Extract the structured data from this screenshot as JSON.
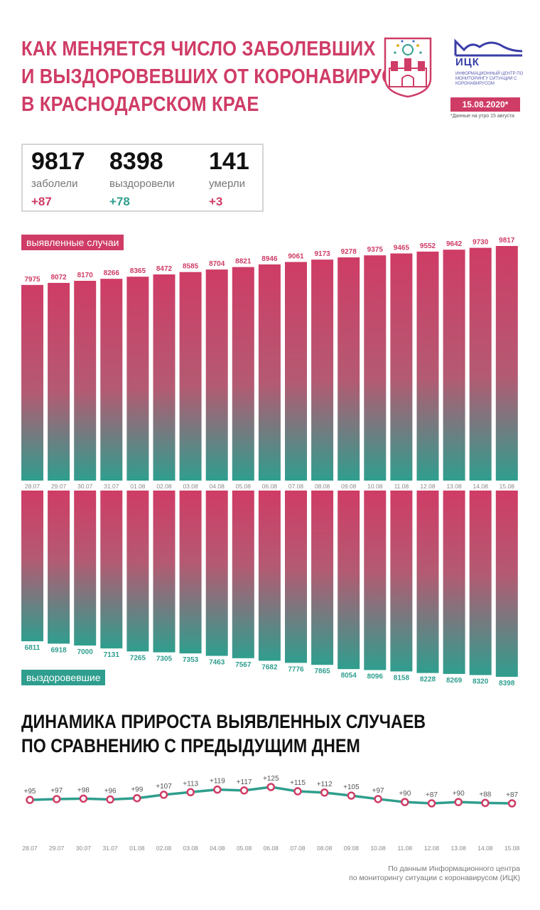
{
  "header": {
    "title_lines": [
      "КАК МЕНЯЕТСЯ ЧИСЛО ЗАБОЛЕВШИХ",
      "И ВЫЗДОРОВЕВШИХ ОТ КОРОНАВИРУСА",
      "В КРАСНОДАРСКОМ КРАЕ"
    ],
    "ick_name": "ИЦК",
    "ick_subtitle": "ИНФОРМАЦИОННЫЙ ЦЕНТР ПО МОНИТОРИНГУ СИТУАЦИИ С КОРОНАВИРУСОМ",
    "date": "15.08.2020*",
    "date_note": "*Данные на утро 15 августа"
  },
  "stats": [
    {
      "value": "9817",
      "label": "заболели",
      "delta": "+87",
      "color": "#cf3c66"
    },
    {
      "value": "8398",
      "label": "выздоровели",
      "delta": "+78",
      "color": "#2f9e8e"
    },
    {
      "value": "141",
      "label": "умерли",
      "delta": "+3",
      "color": "#cf3c66"
    }
  ],
  "colors": {
    "red": "#cf3c66",
    "teal": "#2f9e8e"
  },
  "chart_data": [
    {
      "type": "bar",
      "tag": "выявленные случаи",
      "categories": [
        "28.07",
        "29.07",
        "30.07",
        "31.07",
        "01.08",
        "02.08",
        "03.08",
        "04.08",
        "05.08",
        "06.08",
        "07.08",
        "08.08",
        "09.08",
        "10.08",
        "11.08",
        "12.08",
        "13.08",
        "14.08",
        "15.08"
      ],
      "values": [
        7975,
        8072,
        8170,
        8266,
        8365,
        8472,
        8585,
        8704,
        8821,
        8946,
        9061,
        9173,
        9278,
        9375,
        9465,
        9552,
        9642,
        9730,
        9817
      ]
    },
    {
      "type": "bar",
      "tag": "выздоровевшие",
      "categories": [
        "28.07",
        "29.07",
        "30.07",
        "31.07",
        "01.08",
        "02.08",
        "03.08",
        "04.08",
        "05.08",
        "06.08",
        "07.08",
        "08.08",
        "09.08",
        "10.08",
        "11.08",
        "12.08",
        "13.08",
        "14.08",
        "15.08"
      ],
      "values": [
        6811,
        6918,
        7000,
        7131,
        7265,
        7305,
        7353,
        7463,
        7567,
        7682,
        7776,
        7865,
        8054,
        8096,
        8158,
        8228,
        8269,
        8320,
        8398
      ]
    },
    {
      "type": "line",
      "title_lines": [
        "ДИНАМИКА ПРИРОСТА ВЫЯВЛЕННЫХ СЛУЧАЕВ",
        "ПО СРАВНЕНИЮ С ПРЕДЫДУЩИМ ДНЕМ"
      ],
      "categories": [
        "28.07",
        "29.07",
        "30.07",
        "31.07",
        "01.08",
        "02.08",
        "03.08",
        "04.08",
        "05.08",
        "06.08",
        "07.08",
        "08.08",
        "09.08",
        "10.08",
        "11.08",
        "12.08",
        "13.08",
        "14.08",
        "15.08"
      ],
      "values": [
        95,
        97,
        98,
        96,
        99,
        107,
        113,
        119,
        117,
        125,
        115,
        112,
        105,
        97,
        90,
        87,
        90,
        88,
        87
      ],
      "labels": [
        "+95",
        "+97",
        "+98",
        "+96",
        "+99",
        "+107",
        "+113",
        "+119",
        "+117",
        "+125",
        "+115",
        "+112",
        "+105",
        "+97",
        "+90",
        "+87",
        "+90",
        "+88",
        "+87"
      ]
    }
  ],
  "source_lines": [
    "По данным Информационного центра",
    "по мониторингу ситуации с коронавирусом (ИЦК)"
  ]
}
